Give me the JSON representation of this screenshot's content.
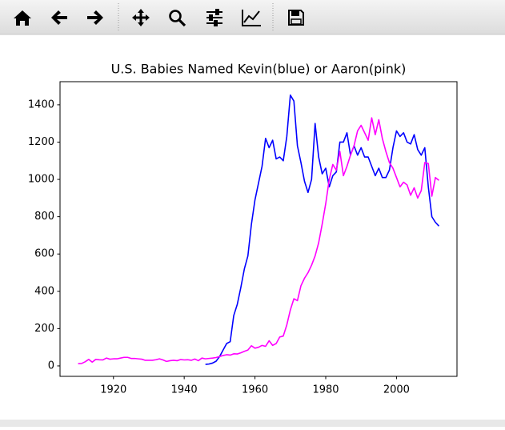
{
  "chart_data": {
    "type": "line",
    "title": "U.S. Babies Named Kevin(blue) or Aaron(pink)",
    "x": [
      1910,
      1911,
      1912,
      1913,
      1914,
      1915,
      1916,
      1917,
      1918,
      1919,
      1920,
      1921,
      1922,
      1923,
      1924,
      1925,
      1926,
      1927,
      1928,
      1929,
      1930,
      1931,
      1932,
      1933,
      1934,
      1935,
      1936,
      1937,
      1938,
      1939,
      1940,
      1941,
      1942,
      1943,
      1944,
      1945,
      1946,
      1947,
      1948,
      1949,
      1950,
      1951,
      1952,
      1953,
      1954,
      1955,
      1956,
      1957,
      1958,
      1959,
      1960,
      1961,
      1962,
      1963,
      1964,
      1965,
      1966,
      1967,
      1968,
      1969,
      1970,
      1971,
      1972,
      1973,
      1974,
      1975,
      1976,
      1977,
      1978,
      1979,
      1980,
      1981,
      1982,
      1983,
      1984,
      1985,
      1986,
      1987,
      1988,
      1989,
      1990,
      1991,
      1992,
      1993,
      1994,
      1995,
      1996,
      1997,
      1998,
      1999,
      2000,
      2001,
      2002,
      2003,
      2004,
      2005,
      2006,
      2007,
      2008,
      2009,
      2010,
      2011,
      2012
    ],
    "series": [
      {
        "color": "#0000ff",
        "values": [
          null,
          null,
          null,
          null,
          null,
          null,
          null,
          null,
          null,
          null,
          null,
          null,
          null,
          null,
          null,
          null,
          null,
          null,
          null,
          null,
          null,
          null,
          null,
          null,
          null,
          null,
          null,
          null,
          null,
          null,
          null,
          null,
          null,
          null,
          null,
          null,
          8,
          10,
          15,
          25,
          50,
          85,
          120,
          130,
          270,
          330,
          420,
          520,
          590,
          760,
          890,
          980,
          1070,
          1220,
          1170,
          1210,
          1110,
          1120,
          1100,
          1230,
          1452,
          1420,
          1180,
          1090,
          990,
          930,
          1000,
          1300,
          1120,
          1030,
          1060,
          960,
          1020,
          1040,
          1200,
          1200,
          1250,
          1130,
          1180,
          1130,
          1170,
          1120,
          1120,
          1070,
          1020,
          1060,
          1010,
          1010,
          1050,
          1170,
          1260,
          1230,
          1250,
          1200,
          1190,
          1240,
          1160,
          1130,
          1170,
          960,
          800,
          770,
          750
        ]
      },
      {
        "color": "#ff00ff",
        "values": [
          12,
          13,
          22,
          35,
          20,
          35,
          33,
          32,
          42,
          36,
          38,
          38,
          42,
          46,
          46,
          40,
          40,
          38,
          36,
          30,
          30,
          30,
          33,
          38,
          32,
          24,
          28,
          30,
          28,
          34,
          32,
          33,
          30,
          37,
          28,
          42,
          38,
          40,
          42,
          45,
          50,
          56,
          60,
          58,
          65,
          64,
          70,
          78,
          85,
          108,
          95,
          100,
          110,
          105,
          135,
          110,
          120,
          155,
          160,
          220,
          300,
          360,
          350,
          430,
          470,
          500,
          540,
          590,
          660,
          760,
          870,
          1000,
          1080,
          1050,
          1150,
          1020,
          1070,
          1130,
          1180,
          1260,
          1290,
          1250,
          1210,
          1330,
          1240,
          1320,
          1220,
          1150,
          1090,
          1060,
          1010,
          960,
          985,
          970,
          915,
          955,
          900,
          940,
          1090,
          1085,
          910,
          1010,
          995
        ]
      }
    ],
    "xlim": [
      1904.9,
      2017.1
    ],
    "xticks": [
      1920,
      1940,
      1960,
      1980,
      2000
    ],
    "ylim": [
      -56,
      1524
    ],
    "yticks": [
      0,
      200,
      400,
      600,
      800,
      1000,
      1200,
      1400
    ]
  }
}
